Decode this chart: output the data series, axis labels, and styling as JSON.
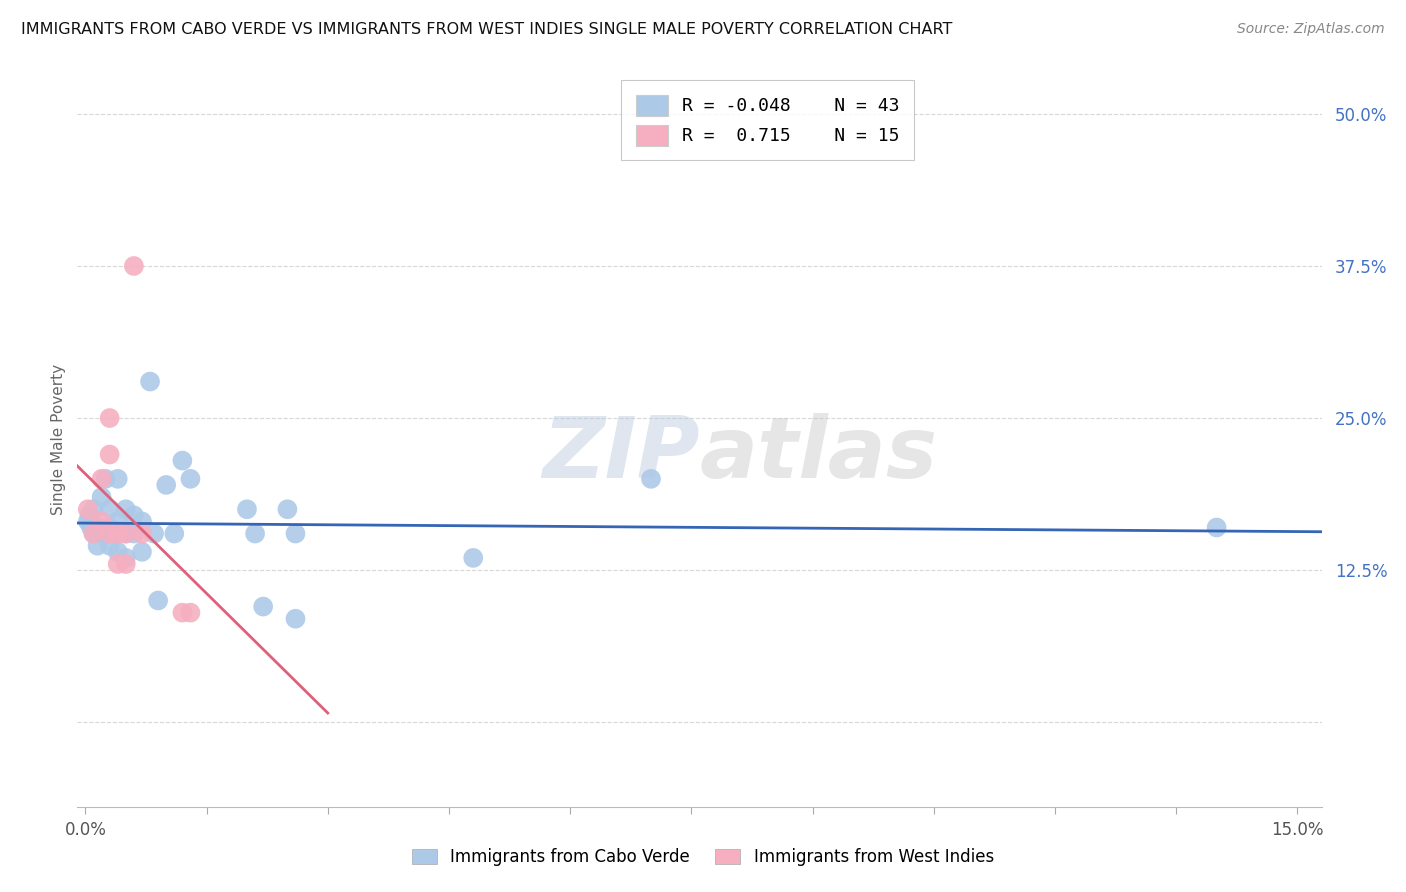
{
  "title": "IMMIGRANTS FROM CABO VERDE VS IMMIGRANTS FROM WEST INDIES SINGLE MALE POVERTY CORRELATION CHART",
  "source": "Source: ZipAtlas.com",
  "ylabel_label": "Single Male Poverty",
  "watermark": "ZIPatlas",
  "x_min": -0.001,
  "x_max": 0.153,
  "y_min": -0.07,
  "y_max": 0.535,
  "y_ticks": [
    0.0,
    0.125,
    0.25,
    0.375,
    0.5
  ],
  "y_tick_labels": [
    "",
    "12.5%",
    "25.0%",
    "37.5%",
    "50.0%"
  ],
  "x_ticks": [
    0.0,
    0.025,
    0.05,
    0.075,
    0.1,
    0.125,
    0.15
  ],
  "x_tick_labels": [
    "0.0%",
    "",
    "",
    "",
    "",
    "",
    "15.0%"
  ],
  "cabo_verde_R": "-0.048",
  "cabo_verde_N": "43",
  "west_indies_R": " 0.715",
  "west_indies_N": "15",
  "cabo_verde_label": "Immigrants from Cabo Verde",
  "west_indies_label": "Immigrants from West Indies",
  "cabo_verde_color": "#adc9e8",
  "west_indies_color": "#f5afc0",
  "cabo_verde_line_color": "#3565b5",
  "west_indies_line_color": "#e0607a",
  "bg_color": "#ffffff",
  "grid_color": "#d8d8d8",
  "right_tick_color": "#4472c4",
  "cabo_verde_x": [
    0.0003,
    0.0005,
    0.0007,
    0.001,
    0.001,
    0.0013,
    0.0015,
    0.0018,
    0.002,
    0.002,
    0.0022,
    0.0025,
    0.0025,
    0.003,
    0.003,
    0.003,
    0.0035,
    0.004,
    0.004,
    0.004,
    0.005,
    0.005,
    0.005,
    0.006,
    0.006,
    0.007,
    0.007,
    0.008,
    0.0085,
    0.009,
    0.01,
    0.011,
    0.012,
    0.013,
    0.02,
    0.021,
    0.022,
    0.025,
    0.026,
    0.026,
    0.048,
    0.07,
    0.14
  ],
  "cabo_verde_y": [
    0.165,
    0.17,
    0.16,
    0.175,
    0.155,
    0.16,
    0.145,
    0.16,
    0.185,
    0.155,
    0.155,
    0.2,
    0.155,
    0.175,
    0.16,
    0.145,
    0.155,
    0.2,
    0.165,
    0.14,
    0.175,
    0.155,
    0.135,
    0.17,
    0.155,
    0.165,
    0.14,
    0.28,
    0.155,
    0.1,
    0.195,
    0.155,
    0.215,
    0.2,
    0.175,
    0.155,
    0.095,
    0.175,
    0.085,
    0.155,
    0.135,
    0.2,
    0.16
  ],
  "west_indies_x": [
    0.0003,
    0.001,
    0.002,
    0.002,
    0.003,
    0.003,
    0.003,
    0.004,
    0.004,
    0.005,
    0.005,
    0.006,
    0.007,
    0.012,
    0.013
  ],
  "west_indies_y": [
    0.175,
    0.155,
    0.2,
    0.165,
    0.25,
    0.22,
    0.155,
    0.155,
    0.13,
    0.155,
    0.13,
    0.375,
    0.155,
    0.09,
    0.09
  ]
}
